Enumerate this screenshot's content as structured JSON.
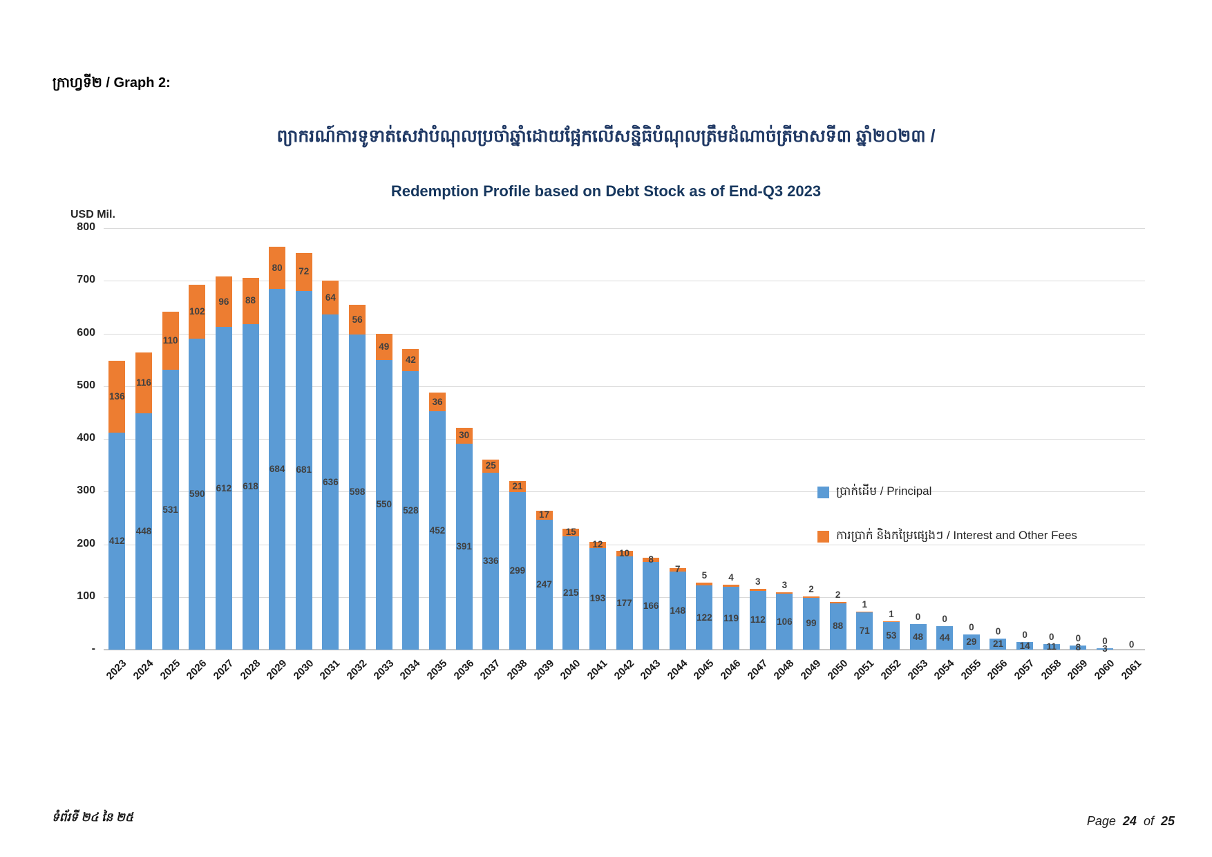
{
  "page": {
    "header": "ក្រាហ្វទី២ / Graph 2:",
    "footer_left": "ទំព័រទី ២៤ នៃ ២៥",
    "footer_right": {
      "label": "Page",
      "page": "24",
      "of": "of",
      "total": "25"
    }
  },
  "chart_data": {
    "type": "bar",
    "stacked": true,
    "title_khmer": "ព្យាករណ៍ការទូទាត់សេវាបំណុលប្រចាំឆ្នាំដោយផ្អែកលើសន្និធិបំណុលត្រឹមដំណាច់ត្រីមាសទី៣ ឆ្នាំ២០២៣ /",
    "title_english": "Redemption Profile based on Debt Stock as of End-Q3 2023",
    "unit_label": "USD Mil.",
    "ylim": [
      0,
      800
    ],
    "grid": true,
    "legend_position": "right-middle",
    "yticks": [
      {
        "label": "800",
        "value": 800
      },
      {
        "label": "700",
        "value": 700
      },
      {
        "label": "600",
        "value": 600
      },
      {
        "label": "500",
        "value": 500
      },
      {
        "label": "400",
        "value": 400
      },
      {
        "label": "300",
        "value": 300
      },
      {
        "label": "200",
        "value": 200
      },
      {
        "label": "100",
        "value": 100
      },
      {
        "label": "-",
        "value": 0
      }
    ],
    "categories": [
      "2023",
      "2024",
      "2025",
      "2026",
      "2027",
      "2028",
      "2029",
      "2030",
      "2031",
      "2032",
      "2033",
      "2034",
      "2035",
      "2036",
      "2037",
      "2038",
      "2039",
      "2040",
      "2041",
      "2042",
      "2043",
      "2044",
      "2045",
      "2046",
      "2047",
      "2048",
      "2049",
      "2050",
      "2051",
      "2052",
      "2053",
      "2054",
      "2055",
      "2056",
      "2057",
      "2058",
      "2059",
      "2060",
      "2061"
    ],
    "series": [
      {
        "name": "ប្រាក់ដើម / Principal",
        "color": "#5B9BD5",
        "values": [
          412,
          448,
          531,
          590,
          612,
          618,
          684,
          681,
          636,
          598,
          550,
          528,
          452,
          391,
          336,
          299,
          247,
          215,
          193,
          177,
          166,
          148,
          122,
          119,
          112,
          106,
          99,
          88,
          71,
          53,
          48,
          44,
          29,
          21,
          14,
          11,
          8,
          3,
          0
        ]
      },
      {
        "name": "ការប្រាក់ និងកម្រៃផ្សេងៗ / Interest and Other Fees",
        "color": "#ED7D31",
        "values": [
          136,
          116,
          110,
          102,
          96,
          88,
          80,
          72,
          64,
          56,
          49,
          42,
          36,
          30,
          25,
          21,
          17,
          15,
          12,
          10,
          8,
          7,
          5,
          4,
          3,
          3,
          2,
          2,
          1,
          1,
          0,
          0,
          0,
          0,
          0,
          0,
          0,
          0,
          null
        ]
      }
    ]
  }
}
